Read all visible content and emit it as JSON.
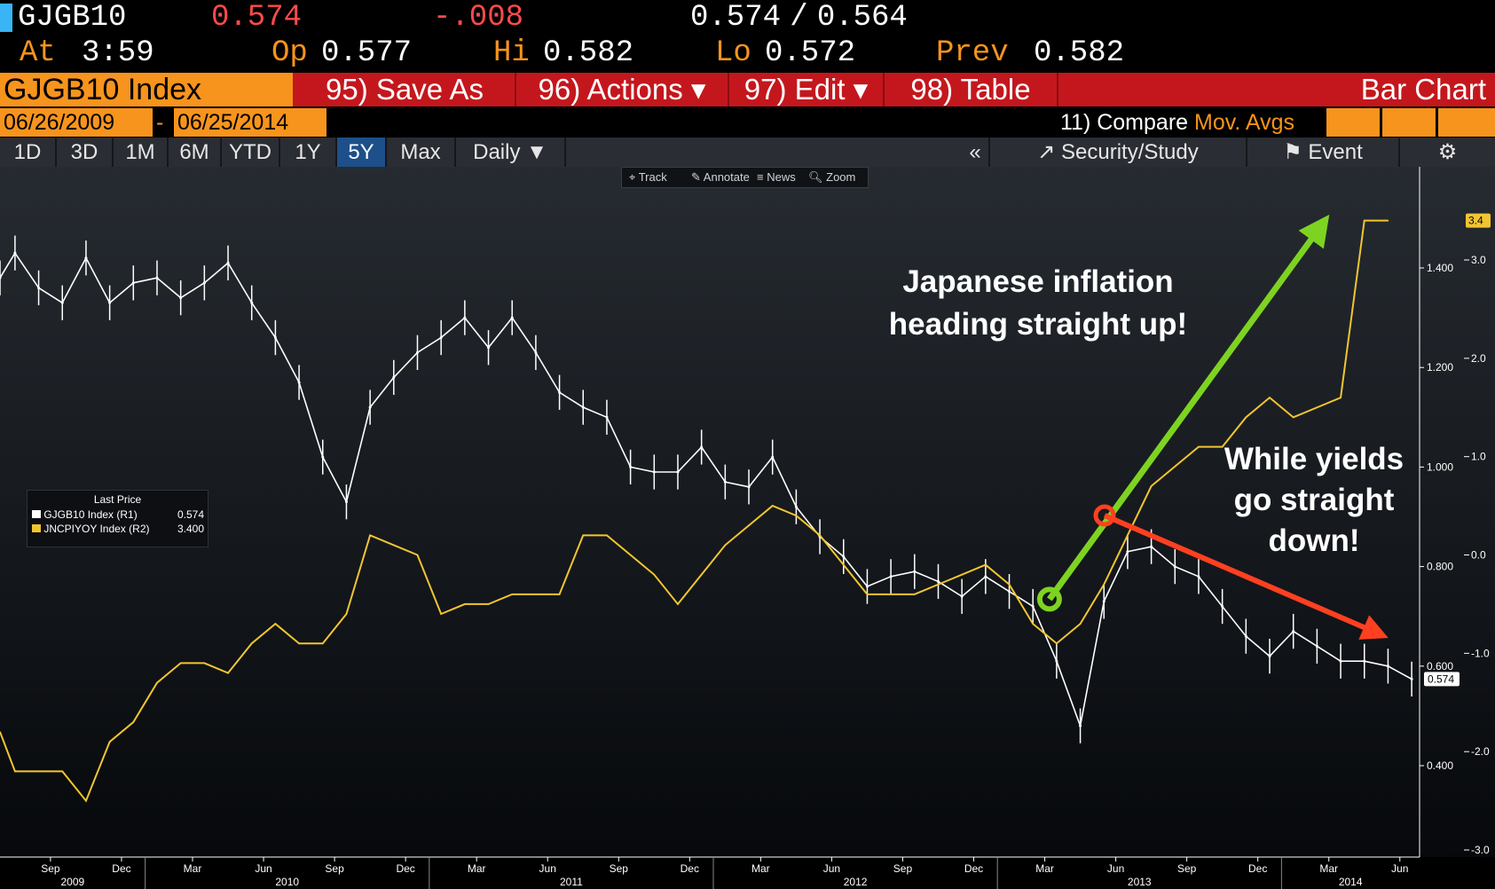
{
  "quote": {
    "ticker": "GJGB10",
    "last": "0.574",
    "change": "-.008",
    "bid_ask": "0.574 / 0.564",
    "at_label": "At",
    "time": "3:59",
    "op_label": "Op",
    "op": "0.577",
    "hi_label": "Hi",
    "hi": "0.582",
    "lo_label": "Lo",
    "lo": "0.572",
    "prev_label": "Prev",
    "prev": "0.582"
  },
  "menubar": {
    "security": "GJGB10 Index",
    "save_as": "95) Save As",
    "actions": "96) Actions ▾",
    "edit": "97) Edit ▾",
    "table": "98) Table",
    "chart_type": "Bar Chart"
  },
  "daterange": {
    "start": "06/26/2009",
    "sep": "-",
    "end": "06/25/2014",
    "compare_label": "11) Compare",
    "compare_value": "Mov. Avgs"
  },
  "periods": [
    "1D",
    "3D",
    "1M",
    "6M",
    "YTD",
    "1Y",
    "5Y",
    "Max"
  ],
  "active_period": "5Y",
  "frequency": "Daily ▼",
  "right_toolbar": {
    "collapse": "«",
    "security_study": "Security/Study",
    "event": "Event",
    "settings_icon": "gear-icon"
  },
  "tools": {
    "track": "Track",
    "annotate": "Annotate",
    "news": "News",
    "zoom": "Zoom"
  },
  "legend": {
    "title": "Last Price",
    "items": [
      {
        "name": "GJGB10 Index  (R1)",
        "value": "0.574",
        "color": "#ffffff"
      },
      {
        "name": "JNCPIYOY Index  (R2)",
        "value": "3.400",
        "color": "#f2c530"
      }
    ]
  },
  "annotations": {
    "inflation": [
      "Japanese inflation",
      "heading straight up!"
    ],
    "yields": [
      "While yields",
      "go straight",
      "down!"
    ],
    "up_arrow_color": "#7ed321",
    "down_arrow_color": "#ff4020"
  },
  "chart_data": {
    "type": "line",
    "x_axis": {
      "month_labels": [
        "Sep",
        "Dec",
        "Mar",
        "Jun",
        "Sep",
        "Dec",
        "Mar",
        "Jun",
        "Sep",
        "Dec",
        "Mar",
        "Jun",
        "Sep",
        "Dec",
        "Mar",
        "Jun",
        "Sep",
        "Dec",
        "Mar",
        "Jun"
      ],
      "month_label_dates": [
        "2009-09",
        "2009-12",
        "2010-03",
        "2010-06",
        "2010-09",
        "2010-12",
        "2011-03",
        "2011-06",
        "2011-09",
        "2011-12",
        "2012-03",
        "2012-06",
        "2012-09",
        "2012-12",
        "2013-03",
        "2013-06",
        "2013-09",
        "2013-12",
        "2014-03",
        "2014-06"
      ],
      "year_labels": [
        "2009",
        "2010",
        "2011",
        "2012",
        "2013",
        "2014"
      ],
      "range": [
        "2009-06-26",
        "2014-06-25"
      ]
    },
    "y_axis_r1": {
      "ticks": [
        "1.400",
        "1.200",
        "1.000",
        "0.800",
        "0.600",
        "0.400"
      ],
      "range": [
        0.3,
        1.55
      ]
    },
    "y_axis_r2": {
      "ticks": [
        "3.0",
        "2.0",
        "1.0",
        "0.0",
        "-1.0",
        "-2.0",
        "-3.0"
      ],
      "range": [
        -3.1,
        3.6
      ]
    },
    "last_tag_r1": "0.574",
    "last_tag_r2": "3.4",
    "series": [
      {
        "name": "GJGB10 Index",
        "axis": "R1",
        "color": "#ffffff",
        "x": [
          "2009-06",
          "2009-07",
          "2009-08",
          "2009-09",
          "2009-10",
          "2009-11",
          "2009-12",
          "2010-01",
          "2010-02",
          "2010-03",
          "2010-04",
          "2010-05",
          "2010-06",
          "2010-07",
          "2010-08",
          "2010-09",
          "2010-10",
          "2010-11",
          "2010-12",
          "2011-01",
          "2011-02",
          "2011-03",
          "2011-04",
          "2011-05",
          "2011-06",
          "2011-07",
          "2011-08",
          "2011-09",
          "2011-10",
          "2011-11",
          "2011-12",
          "2012-01",
          "2012-02",
          "2012-03",
          "2012-04",
          "2012-05",
          "2012-06",
          "2012-07",
          "2012-08",
          "2012-09",
          "2012-10",
          "2012-11",
          "2012-12",
          "2013-01",
          "2013-02",
          "2013-03",
          "2013-04",
          "2013-05",
          "2013-06",
          "2013-07",
          "2013-08",
          "2013-09",
          "2013-10",
          "2013-11",
          "2013-12",
          "2014-01",
          "2014-02",
          "2014-03",
          "2014-04",
          "2014-05",
          "2014-06"
        ],
        "values": [
          1.38,
          1.43,
          1.36,
          1.33,
          1.42,
          1.33,
          1.37,
          1.38,
          1.34,
          1.37,
          1.41,
          1.33,
          1.26,
          1.17,
          1.02,
          0.93,
          1.12,
          1.18,
          1.23,
          1.26,
          1.3,
          1.24,
          1.3,
          1.23,
          1.15,
          1.12,
          1.1,
          1.0,
          0.99,
          0.99,
          1.04,
          0.97,
          0.96,
          1.02,
          0.92,
          0.86,
          0.82,
          0.76,
          0.78,
          0.79,
          0.77,
          0.74,
          0.78,
          0.75,
          0.72,
          0.61,
          0.48,
          0.73,
          0.83,
          0.84,
          0.8,
          0.78,
          0.72,
          0.66,
          0.62,
          0.67,
          0.64,
          0.61,
          0.61,
          0.6,
          0.574
        ]
      },
      {
        "name": "JNCPIYOY Index",
        "axis": "R2",
        "color": "#f2c530",
        "x": [
          "2009-06",
          "2009-07",
          "2009-08",
          "2009-09",
          "2009-10",
          "2009-11",
          "2009-12",
          "2010-01",
          "2010-02",
          "2010-03",
          "2010-04",
          "2010-05",
          "2010-06",
          "2010-07",
          "2010-08",
          "2010-09",
          "2010-10",
          "2010-11",
          "2010-12",
          "2011-01",
          "2011-02",
          "2011-03",
          "2011-04",
          "2011-05",
          "2011-06",
          "2011-07",
          "2011-08",
          "2011-09",
          "2011-10",
          "2011-11",
          "2011-12",
          "2012-01",
          "2012-02",
          "2012-03",
          "2012-04",
          "2012-05",
          "2012-06",
          "2012-07",
          "2012-08",
          "2012-09",
          "2012-10",
          "2012-11",
          "2012-12",
          "2013-01",
          "2013-02",
          "2013-03",
          "2013-04",
          "2013-05",
          "2013-06",
          "2013-07",
          "2013-08",
          "2013-09",
          "2013-10",
          "2013-11",
          "2013-12",
          "2014-01",
          "2014-02",
          "2014-03",
          "2014-04",
          "2014-05"
        ],
        "values": [
          -1.8,
          -2.2,
          -2.2,
          -2.2,
          -2.5,
          -1.9,
          -1.7,
          -1.3,
          -1.1,
          -1.1,
          -1.2,
          -0.9,
          -0.7,
          -0.9,
          -0.9,
          -0.6,
          0.2,
          0.1,
          0.0,
          -0.6,
          -0.5,
          -0.5,
          -0.4,
          -0.4,
          -0.4,
          0.2,
          0.2,
          0.0,
          -0.2,
          -0.5,
          -0.2,
          0.1,
          0.3,
          0.5,
          0.4,
          0.2,
          -0.1,
          -0.4,
          -0.4,
          -0.4,
          -0.3,
          -0.2,
          -0.1,
          -0.3,
          -0.7,
          -0.9,
          -0.7,
          -0.3,
          0.2,
          0.7,
          0.9,
          1.1,
          1.1,
          1.4,
          1.6,
          1.4,
          1.5,
          1.6,
          3.4,
          3.4
        ]
      }
    ]
  }
}
